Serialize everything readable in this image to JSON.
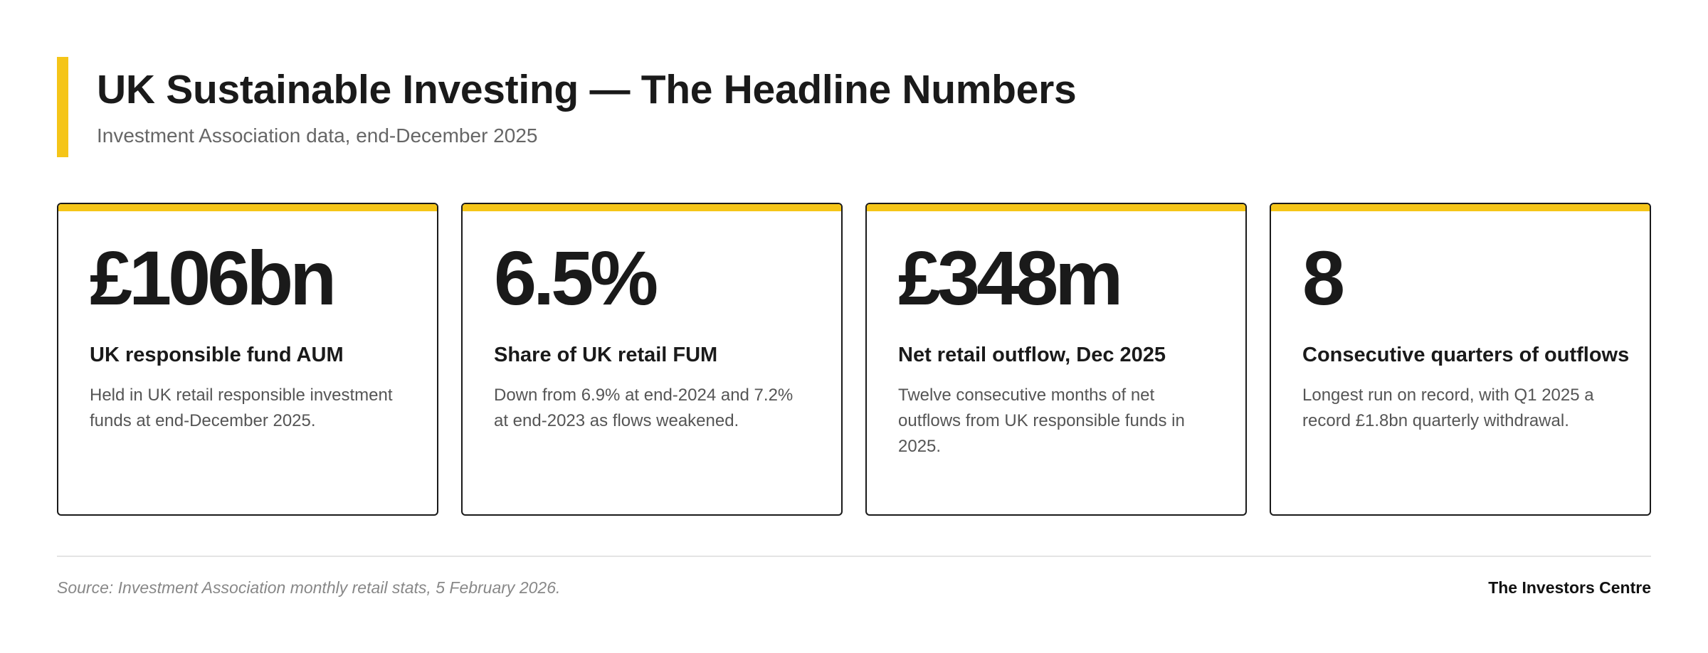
{
  "header": {
    "title": "UK Sustainable Investing — The Headline Numbers",
    "subtitle": "Investment Association data, end-December 2025"
  },
  "cards": [
    {
      "value": "£106bn",
      "label": "UK responsible fund AUM",
      "description": "Held in UK retail responsible investment funds at end-December 2025."
    },
    {
      "value": "6.5%",
      "label": "Share of UK retail FUM",
      "description": "Down from 6.9% at end-2024 and 7.2% at end-2023 as flows weakened."
    },
    {
      "value": "£348m",
      "label": "Net retail outflow, Dec 2025",
      "description": "Twelve consecutive months of net outflows from UK responsible funds in 2025."
    },
    {
      "value": "8",
      "label": "Consecutive quarters of outflows",
      "description": "Longest run on record, with Q1 2025 a record £1.8bn quarterly withdrawal."
    }
  ],
  "footer": {
    "source": "Source: Investment Association monthly retail stats, 5 February 2026.",
    "brand": "The Investors Centre"
  },
  "colors": {
    "accent": "#f5c518",
    "text": "#1a1a1a",
    "muted": "#666666"
  }
}
